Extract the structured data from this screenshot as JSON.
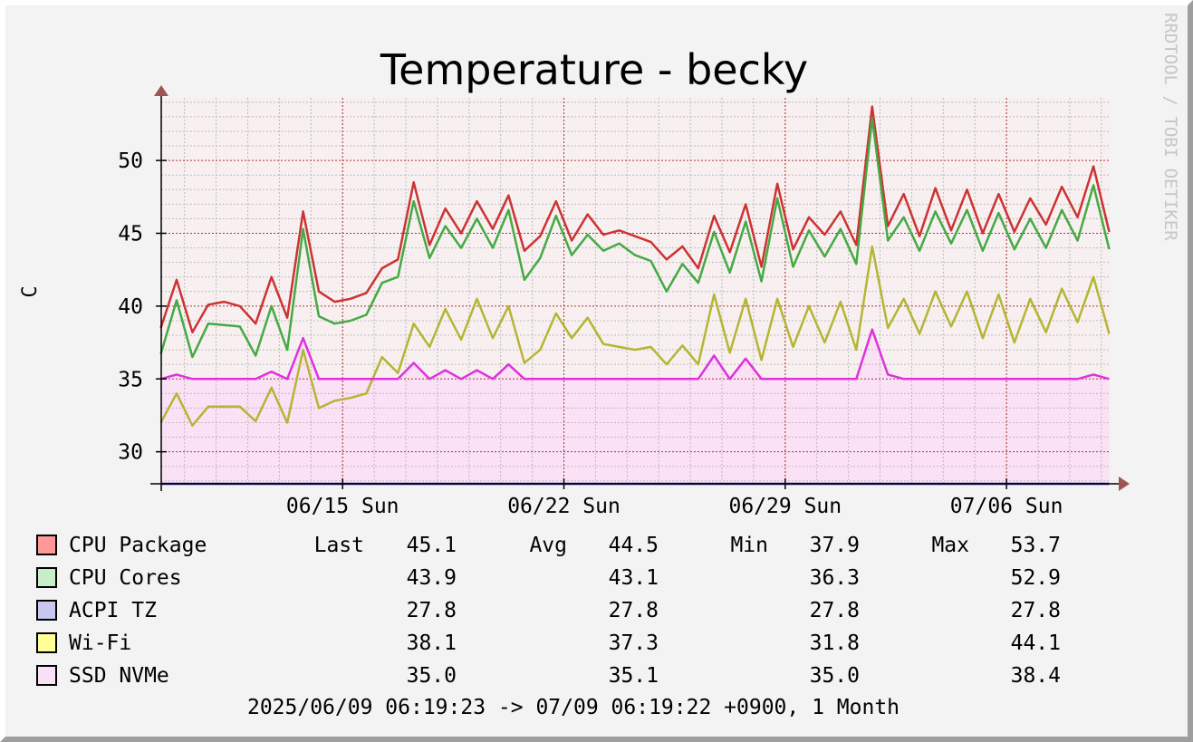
{
  "chart_data": {
    "type": "line",
    "title": "Temperature - becky",
    "ylabel": "C",
    "watermark": "RRDTOOL / TOBI OETIKER",
    "ylim": [
      27.8,
      54.3
    ],
    "yticks": [
      30,
      35,
      40,
      45,
      50
    ],
    "xlim": [
      "2025-06-09 06:19",
      "2025-07-09 06:19"
    ],
    "xticks": [
      {
        "date": "2025-06-15",
        "label": "06/15 Sun"
      },
      {
        "date": "2025-06-22",
        "label": "06/22 Sun"
      },
      {
        "date": "2025-06-29",
        "label": "06/29 Sun"
      },
      {
        "date": "2025-07-06",
        "label": "07/06 Sun"
      }
    ],
    "grid": true,
    "legend_placement": "bottom",
    "x": [
      "06/09 06:00",
      "06/09 18:00",
      "06/10 06:00",
      "06/10 18:00",
      "06/11 06:00",
      "06/11 18:00",
      "06/12 06:00",
      "06/12 18:00",
      "06/13 06:00",
      "06/13 18:00",
      "06/14 06:00",
      "06/14 18:00",
      "06/15 06:00",
      "06/15 18:00",
      "06/16 06:00",
      "06/16 18:00",
      "06/17 06:00",
      "06/17 18:00",
      "06/18 06:00",
      "06/18 18:00",
      "06/19 06:00",
      "06/19 18:00",
      "06/20 06:00",
      "06/20 18:00",
      "06/21 06:00",
      "06/21 18:00",
      "06/22 06:00",
      "06/22 18:00",
      "06/23 06:00",
      "06/23 18:00",
      "06/24 06:00",
      "06/24 18:00",
      "06/25 06:00",
      "06/25 18:00",
      "06/26 06:00",
      "06/26 18:00",
      "06/27 06:00",
      "06/27 18:00",
      "06/28 06:00",
      "06/28 18:00",
      "06/29 06:00",
      "06/29 18:00",
      "06/30 06:00",
      "06/30 18:00",
      "07/01 06:00",
      "07/01 18:00",
      "07/02 06:00",
      "07/02 18:00",
      "07/03 06:00",
      "07/03 18:00",
      "07/04 06:00",
      "07/04 18:00",
      "07/05 06:00",
      "07/05 18:00",
      "07/06 06:00",
      "07/06 18:00",
      "07/07 06:00",
      "07/07 18:00",
      "07/08 06:00",
      "07/08 18:00",
      "07/09 06:00"
    ],
    "series": [
      {
        "name": "CPU Package",
        "color": "#cc3333",
        "area": false,
        "values": [
          38.5,
          41.8,
          38.2,
          40.1,
          40.3,
          40.0,
          38.8,
          42.0,
          39.2,
          46.5,
          41.0,
          40.3,
          40.5,
          40.9,
          42.6,
          43.2,
          48.5,
          44.2,
          46.7,
          45.0,
          47.2,
          45.3,
          47.6,
          43.8,
          44.8,
          47.2,
          44.5,
          46.3,
          44.9,
          45.2,
          44.8,
          44.4,
          43.2,
          44.1,
          42.6,
          46.2,
          43.7,
          47.0,
          42.7,
          48.4,
          43.9,
          46.1,
          44.9,
          46.5,
          44.2,
          53.7,
          45.5,
          47.7,
          44.8,
          48.1,
          45.2,
          48.0,
          45.0,
          47.7,
          45.1,
          47.4,
          45.6,
          48.2,
          46.1,
          49.6,
          45.1
        ]
      },
      {
        "name": "CPU Cores",
        "color": "#44aa44",
        "area": false,
        "values": [
          36.7,
          40.4,
          36.5,
          38.8,
          38.7,
          38.6,
          36.6,
          40.0,
          37.0,
          45.3,
          39.3,
          38.8,
          39.0,
          39.4,
          41.6,
          42.0,
          47.2,
          43.3,
          45.5,
          44.0,
          46.0,
          44.0,
          46.6,
          41.8,
          43.3,
          46.2,
          43.5,
          44.9,
          43.8,
          44.3,
          43.5,
          43.1,
          41.0,
          42.9,
          41.6,
          45.1,
          42.3,
          45.8,
          41.7,
          47.4,
          42.7,
          45.2,
          43.4,
          45.3,
          42.9,
          52.9,
          44.5,
          46.1,
          43.8,
          46.5,
          44.3,
          46.6,
          43.8,
          46.4,
          43.9,
          46.0,
          44.0,
          46.6,
          44.5,
          48.3,
          43.9
        ]
      },
      {
        "name": "ACPI TZ",
        "color": "#2222aa",
        "area": false,
        "values": [
          27.8,
          27.8,
          27.8,
          27.8,
          27.8,
          27.8,
          27.8,
          27.8,
          27.8,
          27.8,
          27.8,
          27.8,
          27.8,
          27.8,
          27.8,
          27.8,
          27.8,
          27.8,
          27.8,
          27.8,
          27.8,
          27.8,
          27.8,
          27.8,
          27.8,
          27.8,
          27.8,
          27.8,
          27.8,
          27.8,
          27.8,
          27.8,
          27.8,
          27.8,
          27.8,
          27.8,
          27.8,
          27.8,
          27.8,
          27.8,
          27.8,
          27.8,
          27.8,
          27.8,
          27.8,
          27.8,
          27.8,
          27.8,
          27.8,
          27.8,
          27.8,
          27.8,
          27.8,
          27.8,
          27.8,
          27.8,
          27.8,
          27.8,
          27.8,
          27.8,
          27.8
        ]
      },
      {
        "name": "Wi-Fi",
        "color": "#b5b535",
        "area": false,
        "values": [
          32.0,
          34.0,
          31.8,
          33.1,
          33.1,
          33.1,
          32.1,
          34.4,
          32.0,
          37.0,
          33.0,
          33.5,
          33.7,
          34.0,
          36.5,
          35.4,
          38.8,
          37.2,
          39.8,
          37.7,
          40.5,
          37.8,
          40.0,
          36.1,
          37.0,
          39.5,
          37.8,
          39.2,
          37.4,
          37.2,
          37.0,
          37.2,
          36.0,
          37.3,
          36.0,
          40.8,
          36.8,
          40.5,
          36.3,
          40.5,
          37.2,
          40.0,
          37.5,
          40.3,
          37.0,
          44.1,
          38.5,
          40.5,
          38.1,
          41.0,
          38.6,
          41.0,
          37.8,
          40.8,
          37.5,
          40.5,
          38.2,
          41.2,
          38.9,
          42.0,
          38.1
        ]
      },
      {
        "name": "SSD NVMe",
        "color": "#dd33dd",
        "area": true,
        "fill": "#fae1f5",
        "values": [
          35.0,
          35.3,
          35.0,
          35.0,
          35.0,
          35.0,
          35.0,
          35.5,
          35.0,
          37.8,
          35.0,
          35.0,
          35.0,
          35.0,
          35.0,
          35.0,
          36.1,
          35.0,
          35.6,
          35.0,
          35.6,
          35.0,
          36.0,
          35.0,
          35.0,
          35.0,
          35.0,
          35.0,
          35.0,
          35.0,
          35.0,
          35.0,
          35.0,
          35.0,
          35.0,
          36.6,
          35.0,
          36.4,
          35.0,
          35.0,
          35.0,
          35.0,
          35.0,
          35.0,
          35.0,
          38.4,
          35.3,
          35.0,
          35.0,
          35.0,
          35.0,
          35.0,
          35.0,
          35.0,
          35.0,
          35.0,
          35.0,
          35.0,
          35.0,
          35.3,
          35.0
        ]
      }
    ]
  },
  "legend": [
    {
      "name": "CPU Package",
      "swatch": "#ff9999",
      "last_label": "Last",
      "last": "45.1",
      "avg_label": "Avg",
      "avg": "44.5",
      "min_label": "Min",
      "min": "37.9",
      "max_label": "Max",
      "max": "53.7"
    },
    {
      "name": "CPU Cores",
      "swatch": "#c8eec8",
      "last": "43.9",
      "avg": "43.1",
      "min": "36.3",
      "max": "52.9"
    },
    {
      "name": "ACPI TZ",
      "swatch": "#c8c8ee",
      "last": "27.8",
      "avg": "27.8",
      "min": "27.8",
      "max": "27.8"
    },
    {
      "name": "Wi-Fi",
      "swatch": "#ffff99",
      "last": "38.1",
      "avg": "37.3",
      "min": "31.8",
      "max": "44.1"
    },
    {
      "name": "SSD NVMe",
      "swatch": "#f8e0f6",
      "last": "35.0",
      "avg": "35.1",
      "min": "35.0",
      "max": "38.4"
    }
  ],
  "footer": "2025/06/09 06:19:23 -> 07/09 06:19:22 +0900, 1 Month"
}
